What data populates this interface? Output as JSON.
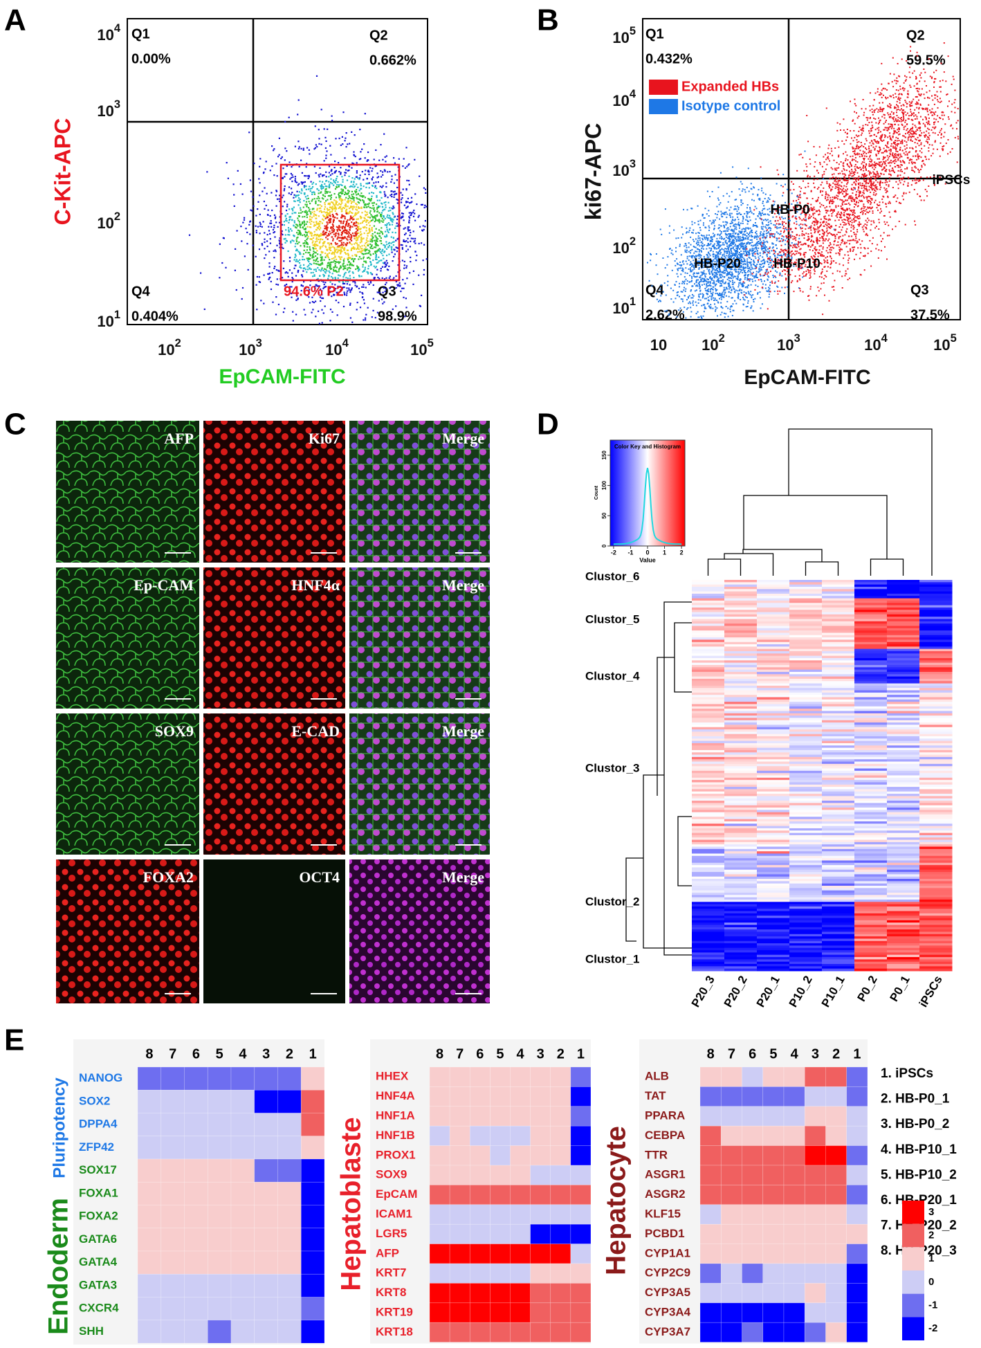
{
  "panel_a": {
    "letter": "A",
    "y_label": "C-Kit-APC",
    "x_label": "EpCAM-FITC",
    "yticks": [
      {
        "base": "10",
        "exp": "4"
      },
      {
        "base": "10",
        "exp": "3"
      },
      {
        "base": "10",
        "exp": "2"
      },
      {
        "base": "10",
        "exp": "1"
      }
    ],
    "xticks": [
      {
        "base": "10",
        "exp": "2"
      },
      {
        "base": "10",
        "exp": "3"
      },
      {
        "base": "10",
        "exp": "4"
      },
      {
        "base": "10",
        "exp": "5"
      }
    ],
    "quadrants": [
      {
        "name": "Q1",
        "value": "0.00%"
      },
      {
        "name": "Q2",
        "value": "0.662%"
      },
      {
        "name": "Q4",
        "value": "0.404%"
      },
      {
        "name": "Q3",
        "value": "98.9%"
      }
    ],
    "gate": "94.6%  P2"
  },
  "panel_b": {
    "letter": "B",
    "y_label": "ki67-APC",
    "x_label": "EpCAM-FITC",
    "yticks": [
      {
        "base": "10",
        "exp": "5"
      },
      {
        "base": "10",
        "exp": "4"
      },
      {
        "base": "10",
        "exp": "3"
      },
      {
        "base": "10",
        "exp": "2"
      },
      {
        "base": "10",
        "exp": "1"
      }
    ],
    "xticks": [
      {
        "base": "10",
        "exp": ""
      },
      {
        "base": "10",
        "exp": "2"
      },
      {
        "base": "10",
        "exp": "3"
      },
      {
        "base": "10",
        "exp": "4"
      },
      {
        "base": "10",
        "exp": "5"
      }
    ],
    "quadrants": [
      {
        "name": "Q1",
        "value": "0.432%"
      },
      {
        "name": "Q2",
        "value": "59.5%"
      },
      {
        "name": "Q4",
        "value": "2.62%"
      },
      {
        "name": "Q3",
        "value": "37.5%"
      }
    ],
    "legend": [
      {
        "name": "Expanded HBs",
        "color": "#e8141e"
      },
      {
        "name": "Isotype control",
        "color": "#1e78e6"
      }
    ]
  },
  "panel_c": {
    "letter": "C",
    "rows": [
      [
        "AFP",
        "Ki67",
        "Merge"
      ],
      [
        "Ep-CAM",
        "HNF4α",
        "Merge"
      ],
      [
        "SOX9",
        "E-CAD",
        "Merge"
      ],
      [
        "FOXA2",
        "OCT4",
        "Merge"
      ]
    ]
  },
  "panel_d": {
    "letter": "D",
    "color_key": {
      "title": "Color Key and Histogram",
      "x_label": "Value",
      "y_label": "Count",
      "xlim": [
        -2.2,
        2.2
      ],
      "xticks": [
        -2,
        -1,
        0,
        1,
        2
      ],
      "ylim": [
        0,
        175
      ],
      "yticks": [
        0,
        50,
        100,
        150
      ]
    },
    "groups": [
      "iPSCs",
      "HB-P0",
      "HB-P20",
      "HB-P10"
    ],
    "clusters": [
      "Clustor_6",
      "Clustor_5",
      "Clustor_4",
      "Clustor_3",
      "Clustor_2",
      "Clustor_1"
    ],
    "columns": [
      "P20_3",
      "P20_2",
      "P20_1",
      "P10_2",
      "P10_1",
      "P0_2",
      "P0_1",
      "iPSCs"
    ]
  },
  "panel_e": {
    "letter": "E",
    "heatmaps": [
      {
        "group_labels": [
          "Pluripotency",
          "Endoderm"
        ],
        "columns": [
          8,
          7,
          6,
          5,
          4,
          3,
          2,
          1
        ],
        "genes": [
          "NANOG",
          "SOX2",
          "DPPA4",
          "ZFP42",
          "SOX17",
          "FOXA1",
          "FOXA2",
          "GATA6",
          "GATA4",
          "GATA3",
          "CXCR4",
          "SHH"
        ],
        "values": [
          [
            -1,
            -1,
            -1,
            -1,
            -1,
            -1,
            -1,
            1
          ],
          [
            0,
            0,
            0,
            0,
            0,
            -2,
            -2,
            2
          ],
          [
            0,
            0,
            0,
            0,
            0,
            0,
            0,
            2
          ],
          [
            0,
            0,
            0,
            0,
            0,
            0,
            0,
            1
          ],
          [
            1,
            1,
            1,
            1,
            1,
            -1,
            -1,
            -2
          ],
          [
            1,
            1,
            1,
            1,
            1,
            1,
            1,
            -2
          ],
          [
            1,
            1,
            1,
            1,
            1,
            1,
            1,
            -2
          ],
          [
            1,
            1,
            1,
            1,
            1,
            1,
            1,
            -2
          ],
          [
            1,
            1,
            1,
            1,
            1,
            1,
            1,
            -2
          ],
          [
            0,
            0,
            0,
            0,
            0,
            0,
            0,
            -2
          ],
          [
            0,
            0,
            0,
            0,
            0,
            0,
            0,
            -1
          ],
          [
            0,
            0,
            0,
            -1,
            0,
            0,
            0,
            -2
          ]
        ]
      },
      {
        "group_labels": [
          "Hepatoblaste"
        ],
        "columns": [
          8,
          7,
          6,
          5,
          4,
          3,
          2,
          1
        ],
        "genes": [
          "HHEX",
          "HNF4A",
          "HNF1A",
          "HNF1B",
          "PROX1",
          "SOX9",
          "EpCAM",
          "ICAM1",
          "LGR5",
          "AFP",
          "KRT7",
          "KRT8",
          "KRT19",
          "KRT18"
        ],
        "values": [
          [
            1,
            1,
            1,
            1,
            1,
            1,
            1,
            -1
          ],
          [
            1,
            1,
            1,
            1,
            1,
            1,
            1,
            -2
          ],
          [
            1,
            1,
            1,
            1,
            1,
            1,
            1,
            -1
          ],
          [
            0,
            1,
            0,
            0,
            0,
            1,
            1,
            -2
          ],
          [
            1,
            1,
            1,
            0,
            1,
            1,
            1,
            -2
          ],
          [
            1,
            1,
            1,
            1,
            1,
            0,
            0,
            0
          ],
          [
            2,
            2,
            2,
            2,
            2,
            2,
            2,
            2
          ],
          [
            0,
            0,
            0,
            0,
            0,
            0,
            0,
            0
          ],
          [
            0,
            0,
            0,
            0,
            0,
            -2,
            -2,
            -2
          ],
          [
            3,
            3,
            3,
            3,
            3,
            3,
            3,
            0
          ],
          [
            0,
            0,
            0,
            0,
            0,
            1,
            1,
            1
          ],
          [
            3,
            3,
            3,
            3,
            3,
            2,
            2,
            2
          ],
          [
            3,
            3,
            3,
            3,
            3,
            2,
            2,
            2
          ],
          [
            2,
            2,
            2,
            2,
            2,
            2,
            2,
            2
          ]
        ]
      },
      {
        "group_labels": [
          "Hepatocyte"
        ],
        "columns": [
          8,
          7,
          6,
          5,
          4,
          3,
          2,
          1
        ],
        "genes": [
          "ALB",
          "TAT",
          "PPARA",
          "CEBPA",
          "TTR",
          "ASGR1",
          "ASGR2",
          "KLF15",
          "PCBD1",
          "CYP1A1",
          "CYP2C9",
          "CYP3A5",
          "CYP3A4",
          "CYP3A7"
        ],
        "values": [
          [
            1,
            1,
            0,
            1,
            1,
            2,
            2,
            -1
          ],
          [
            -1,
            -1,
            -1,
            -1,
            -1,
            0,
            0,
            -1
          ],
          [
            0,
            0,
            0,
            0,
            0,
            1,
            1,
            0
          ],
          [
            2,
            1,
            1,
            1,
            1,
            2,
            1,
            0
          ],
          [
            2,
            2,
            2,
            2,
            2,
            3,
            3,
            -1
          ],
          [
            2,
            2,
            2,
            2,
            2,
            2,
            2,
            0
          ],
          [
            2,
            2,
            2,
            2,
            2,
            2,
            2,
            -1
          ],
          [
            0,
            1,
            1,
            1,
            1,
            1,
            1,
            0
          ],
          [
            1,
            1,
            1,
            1,
            1,
            1,
            1,
            1
          ],
          [
            1,
            1,
            1,
            1,
            1,
            1,
            1,
            -1
          ],
          [
            -1,
            0,
            -1,
            0,
            0,
            0,
            0,
            -2
          ],
          [
            0,
            0,
            0,
            0,
            0,
            1,
            0,
            -2
          ],
          [
            -2,
            -2,
            -2,
            -2,
            -2,
            0,
            0,
            -2
          ],
          [
            -2,
            -2,
            -1,
            -2,
            -2,
            -1,
            1,
            -2
          ]
        ]
      }
    ],
    "samples": [
      "1. iPSCs",
      "2. HB-P0_1",
      "3. HB-P0_2",
      "4. HB-P10_1",
      "5. HB-P10_2",
      "6. HB-P20_1",
      "7. HB-P20_2",
      "8. HB-P20_3"
    ],
    "scale_ticks": [
      3,
      2,
      1,
      0,
      -1,
      -2
    ]
  }
}
